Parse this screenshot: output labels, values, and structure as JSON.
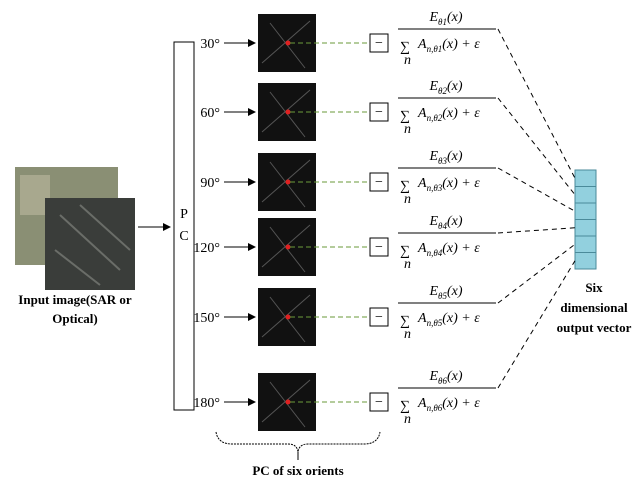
{
  "input_label": [
    "Input image(SAR or",
    "Optical)"
  ],
  "pc_label": [
    "P",
    "C"
  ],
  "rows": [
    {
      "angle": "30°",
      "box": "−",
      "numerator": {
        "symbol": "E",
        "subscript": "θ1",
        "argument": "(x)"
      },
      "denominator": {
        "sum": "∑",
        "sum_index": "n",
        "symbol": "A",
        "subscript": "n,θ1",
        "rest": "(x) + ε"
      }
    },
    {
      "angle": "60°",
      "box": "−",
      "numerator": {
        "symbol": "E",
        "subscript": "θ2",
        "argument": "(x)"
      },
      "denominator": {
        "sum": "∑",
        "sum_index": "n",
        "symbol": "A",
        "subscript": "n,θ2",
        "rest": "(x) + ε"
      }
    },
    {
      "angle": "90°",
      "box": "−",
      "numerator": {
        "symbol": "E",
        "subscript": "θ3",
        "argument": "(x)"
      },
      "denominator": {
        "sum": "∑",
        "sum_index": "n",
        "symbol": "A",
        "subscript": "n,θ3",
        "rest": "(x) + ε"
      }
    },
    {
      "angle": "120°",
      "box": "−",
      "numerator": {
        "symbol": "E",
        "subscript": "θ4",
        "argument": "(x)"
      },
      "denominator": {
        "sum": "∑",
        "sum_index": "n",
        "symbol": "A",
        "subscript": "n,θ4",
        "rest": "(x) + ε"
      }
    },
    {
      "angle": "150°",
      "box": "−",
      "numerator": {
        "symbol": "E",
        "subscript": "θ5",
        "argument": "(x)"
      },
      "denominator": {
        "sum": "∑",
        "sum_index": "n",
        "symbol": "A",
        "subscript": "n,θ5",
        "rest": "(x) + ε"
      }
    },
    {
      "angle": "180°",
      "box": "−",
      "numerator": {
        "symbol": "E",
        "subscript": "θ6",
        "argument": "(x)"
      },
      "denominator": {
        "sum": "∑",
        "sum_index": "n",
        "symbol": "A",
        "subscript": "n,θ6",
        "rest": "(x) + ε"
      }
    }
  ],
  "output_label": [
    "Six",
    "dimensional",
    "output vector"
  ],
  "bottom_label": "PC of six orients"
}
